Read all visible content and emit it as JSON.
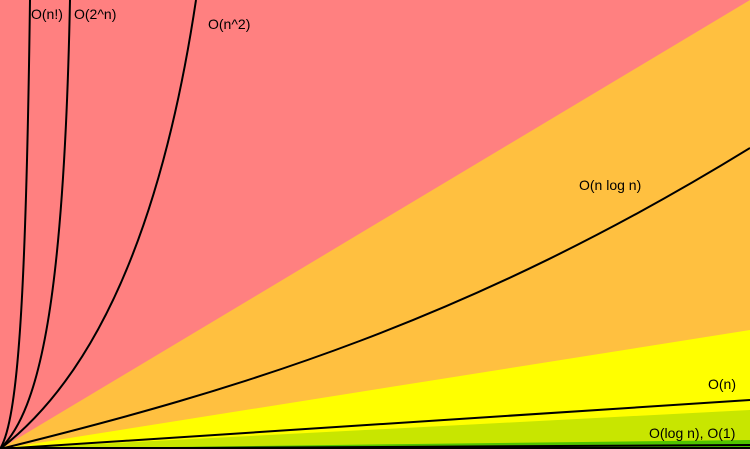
{
  "chart_data": {
    "type": "line",
    "title": "",
    "xlabel": "",
    "ylabel": "",
    "grid": false,
    "legend": "none",
    "colors": {
      "region_bad": "#ff8080",
      "region_fair": "#ffc040",
      "region_good": "#ffff00",
      "region_excellent_light": "#c8e600",
      "region_excellent_dark": "#4fc400",
      "curve": "#000000",
      "axis": "#000000"
    },
    "series": [
      {
        "label": "O(n!)"
      },
      {
        "label": "O(2^n)"
      },
      {
        "label": "O(n^2)"
      },
      {
        "label": "O(n log n)"
      },
      {
        "label": "O(n)"
      },
      {
        "label": "O(log n), O(1)"
      }
    ]
  }
}
